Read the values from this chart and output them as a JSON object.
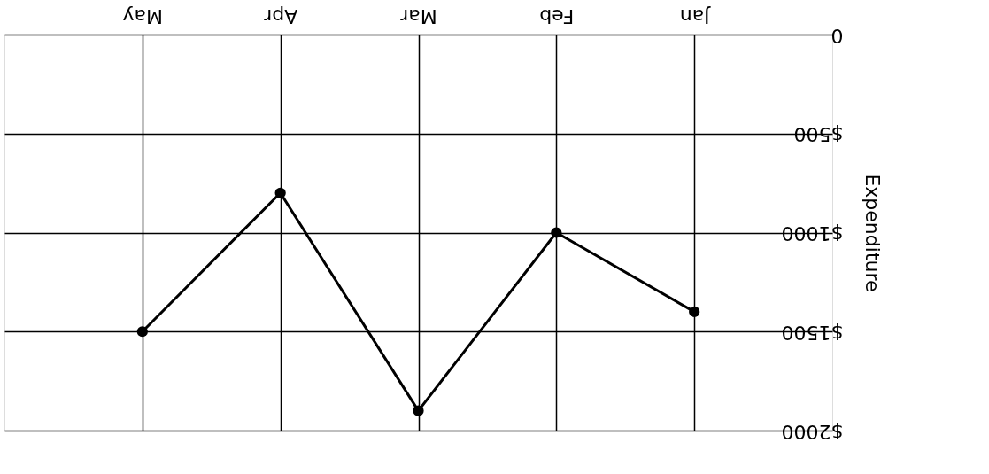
{
  "chart_data": {
    "type": "line",
    "ylabel": "Expenditure",
    "categories": [
      "May",
      "Apr",
      "Mar",
      "Feb",
      "Jan"
    ],
    "series": [
      {
        "color": "#000000",
        "values": [
          1500,
          800,
          1900,
          1000,
          1400
        ]
      }
    ],
    "ylim": [
      2000,
      0
    ],
    "yticks": [
      {
        "value": 0,
        "label": "0"
      },
      {
        "value": 500,
        "label": "$500"
      },
      {
        "value": 1000,
        "label": "$1000"
      },
      {
        "value": 1500,
        "label": "$1500"
      },
      {
        "value": 2000,
        "label": "$2000"
      }
    ],
    "grid": true,
    "marker": "circle",
    "line_style": "solid"
  }
}
